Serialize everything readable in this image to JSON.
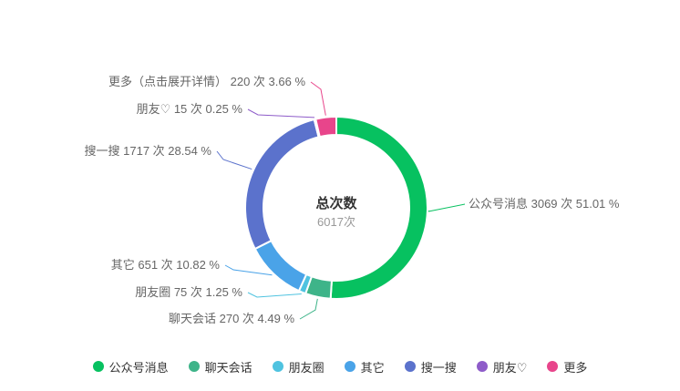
{
  "chart_data": {
    "type": "pie",
    "variant": "donut",
    "center_title": "总次数",
    "center_subtitle": "6017次",
    "slices": [
      {
        "name": "公众号消息",
        "value": 3069,
        "percent": "51.01",
        "color": "#07c160",
        "label": "公众号消息 3069 次 51.01 %"
      },
      {
        "name": "聊天会话",
        "value": 270,
        "percent": "4.49",
        "color": "#3eb489",
        "label": "聊天会话 270 次 4.49 %"
      },
      {
        "name": "朋友圈",
        "value": 75,
        "percent": "1.25",
        "color": "#4fc3e0",
        "label": "朋友圈 75 次 1.25 %"
      },
      {
        "name": "其它",
        "value": 651,
        "percent": "10.82",
        "color": "#4aa3e8",
        "label": "其它 651 次 10.82 %"
      },
      {
        "name": "搜一搜",
        "value": 1717,
        "percent": "28.54",
        "color": "#5b72cc",
        "label": "搜一搜 1717 次 28.54 %"
      },
      {
        "name": "朋友♡",
        "value": 15,
        "percent": "0.25",
        "color": "#8e5cc9",
        "label": "朋友♡ 15 次 0.25 %"
      },
      {
        "name": "更多",
        "value": 220,
        "percent": "3.66",
        "color": "#e8458b",
        "label": "更多（点击展开详情） 220 次 3.66 %"
      }
    ],
    "legend_position": "bottom"
  }
}
